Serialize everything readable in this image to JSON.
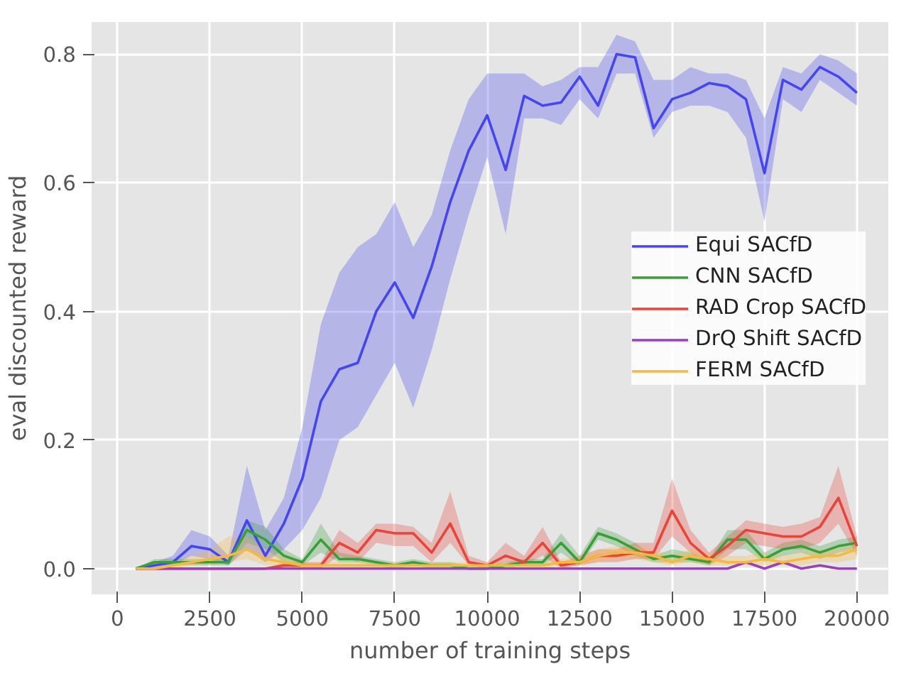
{
  "chart_data": {
    "type": "line",
    "xlabel": "number of training steps",
    "ylabel": "eval discounted reward",
    "x": [
      500,
      1000,
      1500,
      2000,
      2500,
      3000,
      3500,
      4000,
      4500,
      5000,
      5500,
      6000,
      6500,
      7000,
      7500,
      8000,
      8500,
      9000,
      9500,
      10000,
      10500,
      11000,
      11500,
      12000,
      12500,
      13000,
      13500,
      14000,
      14500,
      15000,
      15500,
      16000,
      16500,
      17000,
      17500,
      18000,
      18500,
      19000,
      19500,
      20000
    ],
    "xlim": [
      -700,
      20850
    ],
    "ylim": [
      -0.04,
      0.85
    ],
    "xticks": [
      0,
      2500,
      5000,
      7500,
      10000,
      12500,
      15000,
      17500,
      20000
    ],
    "yticks": [
      {
        "value": 0,
        "label": "0.0"
      },
      {
        "value": 0.2,
        "label": "0.2"
      },
      {
        "value": 0.4,
        "label": "0.4"
      },
      {
        "value": 0.6,
        "label": "0.6"
      },
      {
        "value": 0.8,
        "label": "0.8"
      }
    ],
    "grid": true,
    "legend": "right",
    "line_style": "solid",
    "marker": "none",
    "series": [
      {
        "name": "Equi SACfD",
        "color": "#4646f0",
        "values": [
          0,
          0.005,
          0.01,
          0.035,
          0.03,
          0.01,
          0.075,
          0.02,
          0.07,
          0.14,
          0.26,
          0.31,
          0.32,
          0.4,
          0.445,
          0.39,
          0.47,
          0.57,
          0.65,
          0.705,
          0.62,
          0.735,
          0.72,
          0.725,
          0.765,
          0.72,
          0.8,
          0.795,
          0.685,
          0.73,
          0.74,
          0.755,
          0.75,
          0.73,
          0.615,
          0.76,
          0.745,
          0.78,
          0.765,
          0.74
        ],
        "lower": [
          0,
          0,
          0.005,
          0.02,
          0.015,
          0.005,
          0.03,
          0.01,
          0.03,
          0.06,
          0.11,
          0.2,
          0.22,
          0.27,
          0.32,
          0.25,
          0.34,
          0.45,
          0.55,
          0.64,
          0.52,
          0.7,
          0.7,
          0.69,
          0.73,
          0.7,
          0.77,
          0.77,
          0.67,
          0.71,
          0.72,
          0.72,
          0.71,
          0.67,
          0.54,
          0.73,
          0.71,
          0.76,
          0.74,
          0.72
        ],
        "upper": [
          0,
          0.01,
          0.02,
          0.06,
          0.05,
          0.02,
          0.16,
          0.06,
          0.11,
          0.22,
          0.38,
          0.46,
          0.5,
          0.52,
          0.57,
          0.5,
          0.55,
          0.65,
          0.73,
          0.77,
          0.77,
          0.77,
          0.75,
          0.76,
          0.78,
          0.78,
          0.83,
          0.82,
          0.76,
          0.76,
          0.78,
          0.77,
          0.77,
          0.76,
          0.7,
          0.78,
          0.77,
          0.8,
          0.79,
          0.77
        ]
      },
      {
        "name": "CNN SACfD",
        "color": "#3a9e3a",
        "values": [
          0,
          0.01,
          0.01,
          0.01,
          0.01,
          0.01,
          0.06,
          0.045,
          0.02,
          0.01,
          0.045,
          0.015,
          0.015,
          0.01,
          0.005,
          0.01,
          0.005,
          0.005,
          0,
          0,
          0.005,
          0.01,
          0.01,
          0.04,
          0.01,
          0.055,
          0.045,
          0.03,
          0.015,
          0.02,
          0.015,
          0.01,
          0.045,
          0.045,
          0.015,
          0.03,
          0.035,
          0.025,
          0.035,
          0.04
        ],
        "lower": [
          0,
          0.005,
          0.005,
          0.005,
          0.005,
          0.005,
          0.04,
          0.03,
          0.01,
          0.005,
          0.025,
          0.01,
          0.01,
          0.005,
          0,
          0.005,
          0,
          0,
          0,
          0,
          0,
          0.005,
          0.005,
          0.025,
          0.005,
          0.045,
          0.035,
          0.02,
          0.01,
          0.01,
          0.01,
          0.005,
          0.03,
          0.03,
          0.01,
          0.02,
          0.025,
          0.015,
          0.025,
          0.03
        ],
        "upper": [
          0,
          0.015,
          0.015,
          0.015,
          0.015,
          0.015,
          0.075,
          0.065,
          0.03,
          0.015,
          0.07,
          0.025,
          0.02,
          0.015,
          0.01,
          0.015,
          0.01,
          0.01,
          0.005,
          0.005,
          0.01,
          0.015,
          0.015,
          0.055,
          0.02,
          0.065,
          0.055,
          0.04,
          0.02,
          0.03,
          0.025,
          0.015,
          0.06,
          0.06,
          0.025,
          0.04,
          0.045,
          0.035,
          0.045,
          0.05
        ]
      },
      {
        "name": "RAD Crop SACfD",
        "color": "#e8443a",
        "values": [
          0,
          0,
          0,
          0,
          0,
          0,
          0,
          0,
          0.005,
          0.005,
          0.005,
          0.04,
          0.025,
          0.06,
          0.055,
          0.055,
          0.025,
          0.07,
          0.01,
          0.005,
          0.02,
          0.01,
          0.04,
          0.005,
          0.01,
          0.02,
          0.02,
          0.025,
          0.025,
          0.09,
          0.04,
          0.015,
          0.035,
          0.06,
          0.055,
          0.05,
          0.05,
          0.065,
          0.11,
          0.035
        ],
        "lower": [
          0,
          0,
          0,
          0,
          0,
          0,
          0,
          0,
          0,
          0,
          0,
          0.02,
          0.01,
          0.04,
          0.035,
          0.035,
          0.01,
          0.04,
          0.005,
          0,
          0.01,
          0.005,
          0.02,
          0,
          0.005,
          0.01,
          0.01,
          0.015,
          0.015,
          0.05,
          0.025,
          0.005,
          0.02,
          0.04,
          0.035,
          0.03,
          0.03,
          0.04,
          0.07,
          0.02
        ],
        "upper": [
          0,
          0,
          0,
          0,
          0,
          0,
          0,
          0,
          0.01,
          0.01,
          0.01,
          0.06,
          0.04,
          0.07,
          0.07,
          0.065,
          0.04,
          0.12,
          0.02,
          0.01,
          0.04,
          0.02,
          0.065,
          0.01,
          0.02,
          0.03,
          0.03,
          0.04,
          0.04,
          0.14,
          0.06,
          0.025,
          0.05,
          0.075,
          0.07,
          0.065,
          0.07,
          0.08,
          0.16,
          0.05
        ]
      },
      {
        "name": "DrQ Shift SACfD",
        "color": "#9b3fbf",
        "values": [
          0,
          0,
          0,
          0,
          0,
          0,
          0,
          0,
          0,
          0,
          0,
          0,
          0,
          0,
          0,
          0,
          0,
          0,
          0,
          0,
          0,
          0,
          0,
          0,
          0,
          0,
          0,
          0,
          0,
          0,
          0,
          0,
          0,
          0.01,
          0,
          0.01,
          0,
          0.005,
          0,
          0
        ]
      },
      {
        "name": "FERM SACfD",
        "color": "#f5b942",
        "values": [
          0,
          0,
          0.005,
          0.01,
          0.015,
          0.02,
          0.03,
          0.015,
          0.01,
          0.005,
          0.005,
          0.005,
          0.005,
          0.005,
          0.005,
          0.005,
          0.005,
          0.005,
          0.005,
          0.005,
          0.005,
          0.005,
          0.005,
          0.01,
          0.01,
          0.02,
          0.025,
          0.025,
          0.02,
          0.01,
          0.02,
          0.015,
          0.01,
          0.01,
          0.015,
          0.01,
          0.015,
          0.02,
          0.02,
          0.03
        ],
        "lower": [
          0,
          0,
          0,
          0.005,
          0.005,
          0.01,
          0.015,
          0.005,
          0.005,
          0,
          0,
          0,
          0,
          0,
          0,
          0,
          0,
          0,
          0,
          0,
          0,
          0,
          0,
          0.005,
          0.005,
          0.01,
          0.015,
          0.015,
          0.01,
          0.005,
          0.01,
          0.005,
          0.005,
          0.005,
          0.005,
          0.005,
          0.005,
          0.01,
          0.01,
          0.015
        ],
        "upper": [
          0,
          0.005,
          0.01,
          0.02,
          0.03,
          0.05,
          0.05,
          0.03,
          0.02,
          0.01,
          0.01,
          0.01,
          0.01,
          0.01,
          0.01,
          0.01,
          0.01,
          0.01,
          0.01,
          0.01,
          0.01,
          0.01,
          0.01,
          0.015,
          0.02,
          0.03,
          0.035,
          0.035,
          0.03,
          0.02,
          0.03,
          0.025,
          0.02,
          0.02,
          0.025,
          0.02,
          0.025,
          0.03,
          0.03,
          0.04
        ]
      }
    ]
  }
}
